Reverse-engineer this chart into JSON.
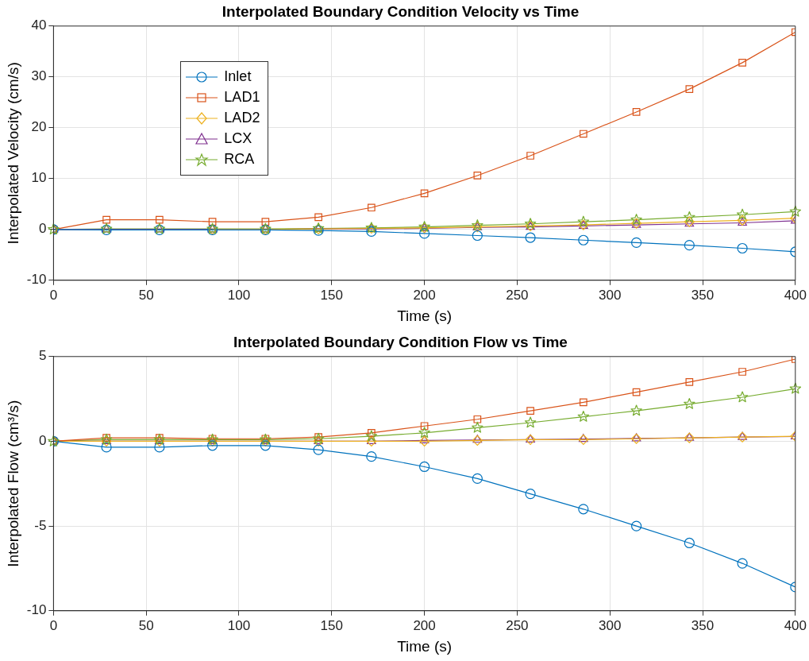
{
  "chart_data": [
    {
      "type": "line",
      "title": "Interpolated Boundary Condition Velocity vs Time",
      "xlabel": "Time (s)",
      "ylabel": "Interpolated Velocity (cm/s)",
      "x": [
        0,
        28.57,
        57.14,
        85.71,
        114.29,
        142.86,
        171.43,
        200,
        228.57,
        257.14,
        285.71,
        314.29,
        342.86,
        371.43,
        400
      ],
      "series": [
        {
          "name": "Inlet",
          "color": "#0072bd",
          "marker": "circle",
          "values": [
            0,
            -0.1,
            -0.1,
            -0.1,
            -0.1,
            -0.2,
            -0.4,
            -0.8,
            -1.2,
            -1.6,
            -2.1,
            -2.6,
            -3.1,
            -3.7,
            -4.4
          ]
        },
        {
          "name": "LAD1",
          "color": "#d95319",
          "marker": "square",
          "values": [
            0,
            1.9,
            1.9,
            1.5,
            1.5,
            2.4,
            4.3,
            7.1,
            10.6,
            14.5,
            18.8,
            23.1,
            27.6,
            32.8,
            38.8
          ]
        },
        {
          "name": "LAD2",
          "color": "#edb120",
          "marker": "diamond",
          "values": [
            null,
            null,
            null,
            0,
            0,
            0.1,
            0.2,
            0.3,
            0.5,
            0.7,
            0.9,
            1.2,
            1.5,
            1.8,
            2.2
          ]
        },
        {
          "name": "LCX",
          "color": "#7e2f8e",
          "marker": "triangle",
          "values": [
            0,
            0,
            0,
            0,
            0,
            0.1,
            0.1,
            0.2,
            0.4,
            0.5,
            0.7,
            0.9,
            1.1,
            1.3,
            1.7
          ]
        },
        {
          "name": "RCA",
          "color": "#77ac30",
          "marker": "star",
          "values": [
            0,
            0.1,
            0.1,
            0.1,
            0.1,
            0.2,
            0.3,
            0.5,
            0.8,
            1.1,
            1.5,
            1.9,
            2.4,
            2.9,
            3.5
          ]
        }
      ],
      "xlim": [
        0,
        400
      ],
      "xticks": [
        0,
        50,
        100,
        150,
        200,
        250,
        300,
        350,
        400
      ],
      "ylim": [
        -10,
        40
      ],
      "yticks": [
        -10,
        0,
        10,
        20,
        30,
        40
      ],
      "grid": true,
      "legend": "top left"
    },
    {
      "type": "line",
      "title": "Interpolated Boundary Condition Flow vs Time",
      "xlabel": "Time (s)",
      "ylabel": "Interpolated Flow (cm³/s)",
      "x": [
        0,
        28.57,
        57.14,
        85.71,
        114.29,
        142.86,
        171.43,
        200,
        228.57,
        257.14,
        285.71,
        314.29,
        342.86,
        371.43,
        400
      ],
      "series": [
        {
          "color": "#0072bd",
          "marker": "circle",
          "values": [
            0,
            -0.35,
            -0.35,
            -0.25,
            -0.25,
            -0.5,
            -0.9,
            -1.5,
            -2.2,
            -3.1,
            -4.0,
            -5.0,
            -6.0,
            -7.2,
            -8.6
          ]
        },
        {
          "color": "#d95319",
          "marker": "square",
          "values": [
            0,
            0.2,
            0.2,
            0.15,
            0.15,
            0.25,
            0.5,
            0.9,
            1.3,
            1.8,
            2.3,
            2.9,
            3.5,
            4.1,
            4.85
          ]
        },
        {
          "color": "#edb120",
          "marker": "diamond",
          "values": [
            0,
            0,
            0,
            0,
            0,
            0,
            0,
            0,
            0.05,
            0.1,
            0.1,
            0.15,
            0.2,
            0.25,
            0.3
          ]
        },
        {
          "color": "#7e2f8e",
          "marker": "triangle",
          "values": [
            0,
            0,
            0,
            0,
            0,
            0,
            0,
            0.05,
            0.08,
            0.1,
            0.13,
            0.17,
            0.2,
            0.25,
            0.28
          ]
        },
        {
          "color": "#77ac30",
          "marker": "star",
          "values": [
            0,
            0.1,
            0.1,
            0.1,
            0.1,
            0.15,
            0.3,
            0.5,
            0.8,
            1.1,
            1.45,
            1.8,
            2.2,
            2.6,
            3.1
          ]
        }
      ],
      "xlim": [
        0,
        400
      ],
      "xticks": [
        0,
        50,
        100,
        150,
        200,
        250,
        300,
        350,
        400
      ],
      "ylim": [
        -10,
        5
      ],
      "yticks": [
        -10,
        -5,
        0,
        5
      ],
      "grid": true
    }
  ]
}
